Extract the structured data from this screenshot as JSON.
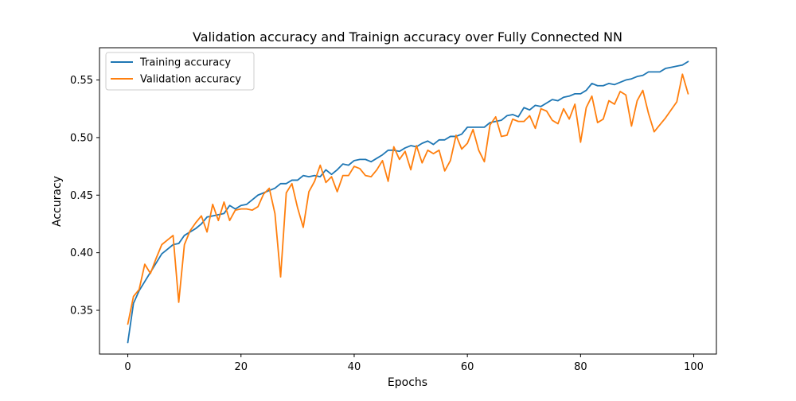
{
  "chart_data": {
    "type": "line",
    "title": "Validation accuracy and Trainign accuracy over Fully Connected NN",
    "xlabel": "Epochs",
    "ylabel": "Accuracy",
    "xlim": [
      -5,
      104
    ],
    "ylim": [
      0.312,
      0.578
    ],
    "xticks": [
      0,
      20,
      40,
      60,
      80,
      100
    ],
    "xtick_labels": [
      "0",
      "20",
      "40",
      "60",
      "80",
      "100"
    ],
    "yticks": [
      0.35,
      0.4,
      0.45,
      0.5,
      0.55
    ],
    "ytick_labels": [
      "0.35",
      "0.40",
      "0.45",
      "0.50",
      "0.55"
    ],
    "grid": false,
    "legend_position": "top-left",
    "x": [
      0,
      1,
      2,
      3,
      4,
      5,
      6,
      7,
      8,
      9,
      10,
      11,
      12,
      13,
      14,
      15,
      16,
      17,
      18,
      19,
      20,
      21,
      22,
      23,
      24,
      25,
      26,
      27,
      28,
      29,
      30,
      31,
      32,
      33,
      34,
      35,
      36,
      37,
      38,
      39,
      40,
      41,
      42,
      43,
      44,
      45,
      46,
      47,
      48,
      49,
      50,
      51,
      52,
      53,
      54,
      55,
      56,
      57,
      58,
      59,
      60,
      61,
      62,
      63,
      64,
      65,
      66,
      67,
      68,
      69,
      70,
      71,
      72,
      73,
      74,
      75,
      76,
      77,
      78,
      79,
      80,
      81,
      82,
      83,
      84,
      85,
      86,
      87,
      88,
      89,
      90,
      91,
      92,
      93,
      94,
      95,
      96,
      97,
      98,
      99
    ],
    "series": [
      {
        "name": "Training accuracy",
        "color": "#1f77b4",
        "values": [
          0.322,
          0.356,
          0.367,
          0.375,
          0.383,
          0.391,
          0.399,
          0.403,
          0.407,
          0.408,
          0.415,
          0.418,
          0.421,
          0.425,
          0.431,
          0.432,
          0.433,
          0.434,
          0.441,
          0.438,
          0.441,
          0.442,
          0.446,
          0.45,
          0.452,
          0.454,
          0.456,
          0.46,
          0.46,
          0.463,
          0.463,
          0.467,
          0.466,
          0.467,
          0.466,
          0.472,
          0.468,
          0.472,
          0.477,
          0.476,
          0.48,
          0.481,
          0.481,
          0.479,
          0.482,
          0.485,
          0.489,
          0.489,
          0.488,
          0.491,
          0.493,
          0.492,
          0.495,
          0.497,
          0.494,
          0.498,
          0.498,
          0.501,
          0.501,
          0.503,
          0.509,
          0.509,
          0.509,
          0.509,
          0.513,
          0.514,
          0.515,
          0.519,
          0.52,
          0.518,
          0.526,
          0.524,
          0.528,
          0.527,
          0.53,
          0.533,
          0.532,
          0.535,
          0.536,
          0.538,
          0.538,
          0.541,
          0.547,
          0.545,
          0.545,
          0.547,
          0.546,
          0.548,
          0.55,
          0.551,
          0.553,
          0.554,
          0.557,
          0.557,
          0.557,
          0.56,
          0.561,
          0.562,
          0.563,
          0.566
        ]
      },
      {
        "name": "Validation accuracy",
        "color": "#ff7f0e",
        "values": [
          0.338,
          0.362,
          0.368,
          0.39,
          0.382,
          0.395,
          0.407,
          0.411,
          0.415,
          0.357,
          0.407,
          0.419,
          0.426,
          0.432,
          0.418,
          0.442,
          0.428,
          0.444,
          0.428,
          0.437,
          0.438,
          0.438,
          0.437,
          0.44,
          0.451,
          0.456,
          0.434,
          0.379,
          0.452,
          0.46,
          0.439,
          0.422,
          0.453,
          0.462,
          0.476,
          0.461,
          0.466,
          0.453,
          0.467,
          0.467,
          0.475,
          0.473,
          0.467,
          0.466,
          0.472,
          0.48,
          0.462,
          0.492,
          0.481,
          0.488,
          0.472,
          0.493,
          0.478,
          0.489,
          0.486,
          0.489,
          0.471,
          0.48,
          0.502,
          0.49,
          0.495,
          0.507,
          0.489,
          0.479,
          0.511,
          0.518,
          0.501,
          0.502,
          0.516,
          0.514,
          0.514,
          0.519,
          0.508,
          0.525,
          0.523,
          0.515,
          0.512,
          0.525,
          0.516,
          0.529,
          0.496,
          0.526,
          0.536,
          0.513,
          0.516,
          0.532,
          0.529,
          0.54,
          0.537,
          0.51,
          0.532,
          0.541,
          0.521,
          0.505,
          0.511,
          0.517,
          0.524,
          0.531,
          0.555,
          0.538
        ]
      }
    ]
  }
}
